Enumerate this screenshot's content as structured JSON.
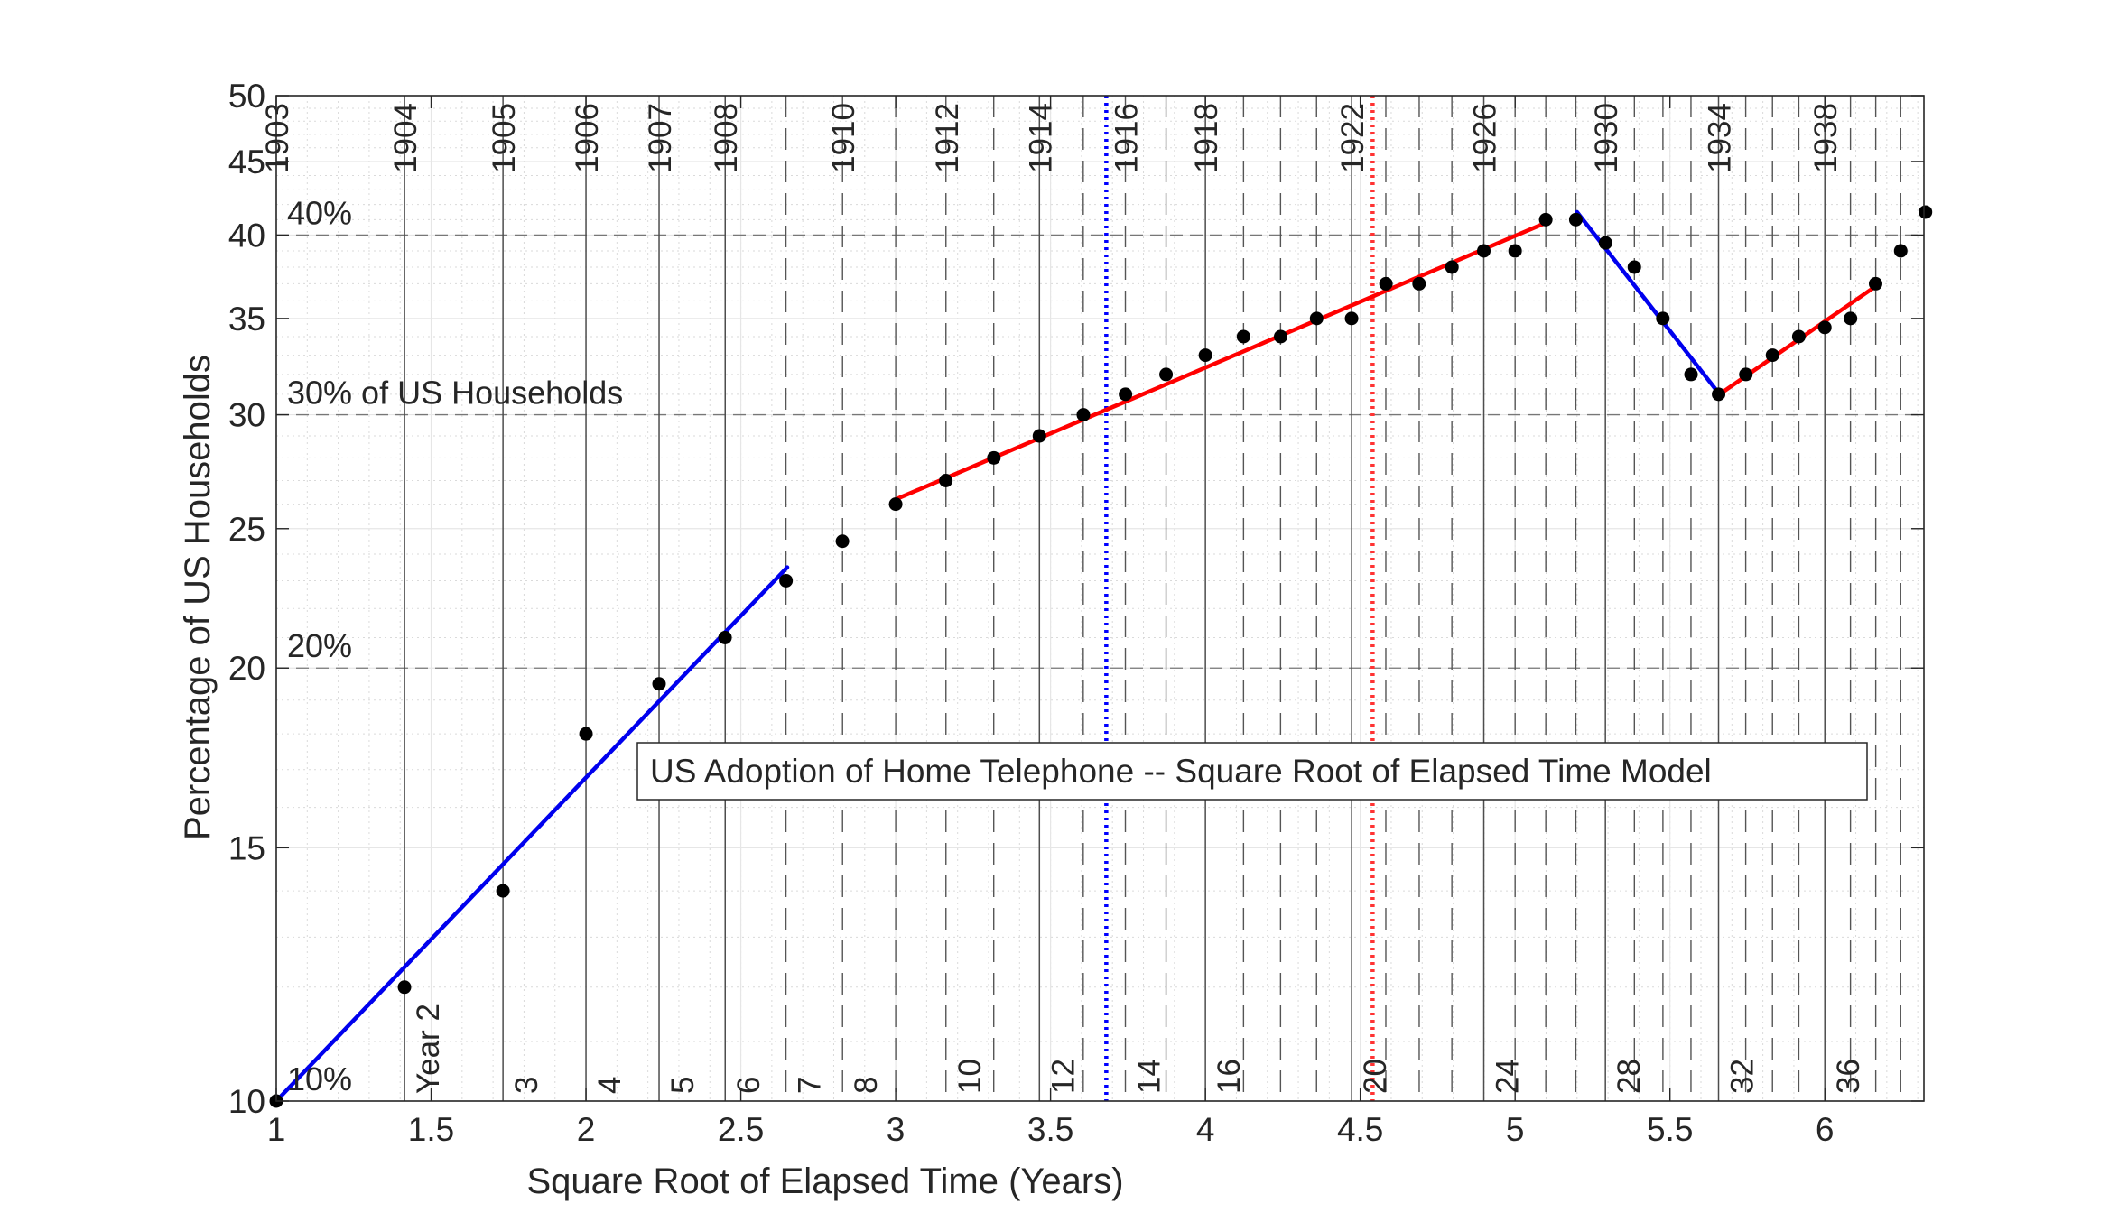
{
  "chart_data": {
    "type": "scatter",
    "title": "US Adoption of Home Telephone -- Square Root of Elapsed Time Model",
    "xlabel": "Square Root of Elapsed Time (Years)",
    "ylabel": "Percentage of US Households",
    "xlim": [
      1,
      6.32
    ],
    "ylim": [
      10,
      50
    ],
    "y_scale": "log",
    "grid": true,
    "x_ticks": [
      1,
      1.5,
      2,
      2.5,
      3,
      3.5,
      4,
      4.5,
      5,
      5.5,
      6
    ],
    "x_tick_labels": [
      "1",
      "1.5",
      "2",
      "2.5",
      "3",
      "3.5",
      "4",
      "4.5",
      "5",
      "5.5",
      "6"
    ],
    "y_ticks": [
      10,
      15,
      20,
      25,
      30,
      35,
      40,
      45,
      50
    ],
    "y_tick_labels": [
      "10",
      "15",
      "20",
      "25",
      "30",
      "35",
      "40",
      "45",
      "50"
    ],
    "percent_lines": [
      {
        "value": 10,
        "label": "10%"
      },
      {
        "value": 20,
        "label": "20%"
      },
      {
        "value": 30,
        "label": "30% of US Households"
      },
      {
        "value": 40,
        "label": "40%"
      }
    ],
    "year_labels_top": [
      {
        "t": 1,
        "label": "1903"
      },
      {
        "t": 2,
        "label": "1904"
      },
      {
        "t": 3,
        "label": "1905"
      },
      {
        "t": 4,
        "label": "1906"
      },
      {
        "t": 5,
        "label": "1907"
      },
      {
        "t": 6,
        "label": "1908"
      },
      {
        "t": 8,
        "label": "1910"
      },
      {
        "t": 10,
        "label": "1912"
      },
      {
        "t": 12,
        "label": "1914"
      },
      {
        "t": 14,
        "label": "1916"
      },
      {
        "t": 16,
        "label": "1918"
      },
      {
        "t": 20,
        "label": "1922"
      },
      {
        "t": 24,
        "label": "1926"
      },
      {
        "t": 28,
        "label": "1930"
      },
      {
        "t": 32,
        "label": "1934"
      },
      {
        "t": 36,
        "label": "1938"
      }
    ],
    "year_labels_bottom": [
      {
        "t": 2,
        "label": "Year 2"
      },
      {
        "t": 3,
        "label": "3"
      },
      {
        "t": 4,
        "label": "4"
      },
      {
        "t": 5,
        "label": "5"
      },
      {
        "t": 6,
        "label": "6"
      },
      {
        "t": 7,
        "label": "7"
      },
      {
        "t": 8,
        "label": "8"
      },
      {
        "t": 10,
        "label": "10"
      },
      {
        "t": 12,
        "label": "12"
      },
      {
        "t": 14,
        "label": "14"
      },
      {
        "t": 16,
        "label": "16"
      },
      {
        "t": 20,
        "label": "20"
      },
      {
        "t": 24,
        "label": "24"
      },
      {
        "t": 28,
        "label": "28"
      },
      {
        "t": 32,
        "label": "32"
      },
      {
        "t": 36,
        "label": "36"
      }
    ],
    "solid_year_lines": [
      2,
      3,
      4,
      5,
      6,
      12,
      16,
      20,
      24,
      28,
      32,
      36
    ],
    "reference_lines": [
      {
        "x": 3.68,
        "color": "#0000ff",
        "style": "dotted"
      },
      {
        "x": 4.54,
        "color": "#ff3333",
        "style": "dotted"
      }
    ],
    "points": {
      "x": [
        1.0,
        1.414,
        1.732,
        2.0,
        2.236,
        2.449,
        2.646,
        2.828,
        3.0,
        3.162,
        3.317,
        3.464,
        3.606,
        3.742,
        3.873,
        4.0,
        4.123,
        4.243,
        4.359,
        4.472,
        4.583,
        4.69,
        4.796,
        4.899,
        5.0,
        5.099,
        5.196,
        5.292,
        5.385,
        5.477,
        5.568,
        5.657,
        5.745,
        5.831,
        5.916,
        6.0,
        6.083,
        6.164,
        6.245,
        6.325
      ],
      "y": [
        10,
        12,
        14,
        18,
        19.5,
        21,
        23,
        24.5,
        26,
        27,
        28,
        29,
        30,
        31,
        32,
        33,
        34,
        34,
        35,
        35,
        37,
        37,
        38,
        39,
        39,
        41,
        41,
        39.5,
        38,
        35,
        32,
        31,
        32,
        33,
        34,
        34.5,
        35,
        37,
        39,
        41.5
      ],
      "color": "#000000"
    },
    "fit_lines": [
      {
        "x": [
          1.0,
          2.65
        ],
        "y": [
          10,
          23.5
        ],
        "color": "#0000ee"
      },
      {
        "x": [
          3.0,
          5.1
        ],
        "y": [
          26.2,
          40.8
        ],
        "color": "#ff0000"
      },
      {
        "x": [
          5.2,
          5.66
        ],
        "y": [
          41.5,
          31
        ],
        "color": "#0000ee"
      },
      {
        "x": [
          5.66,
          6.16
        ],
        "y": [
          31,
          36.8
        ],
        "color": "#ff0000"
      }
    ]
  }
}
